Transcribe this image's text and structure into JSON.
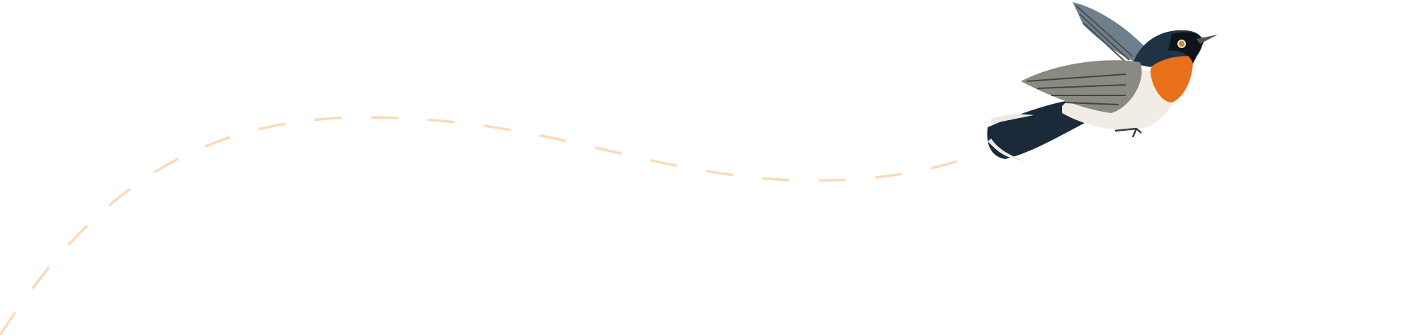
{
  "illustration": {
    "subject": "bird-in-flight",
    "colors": {
      "flight_path": "#fcd9b6",
      "throat": "#e8701a",
      "head": "#1f3347",
      "wing": "#8a8a80",
      "belly": "#f1ede4",
      "tail": "#1b2a3a"
    }
  }
}
